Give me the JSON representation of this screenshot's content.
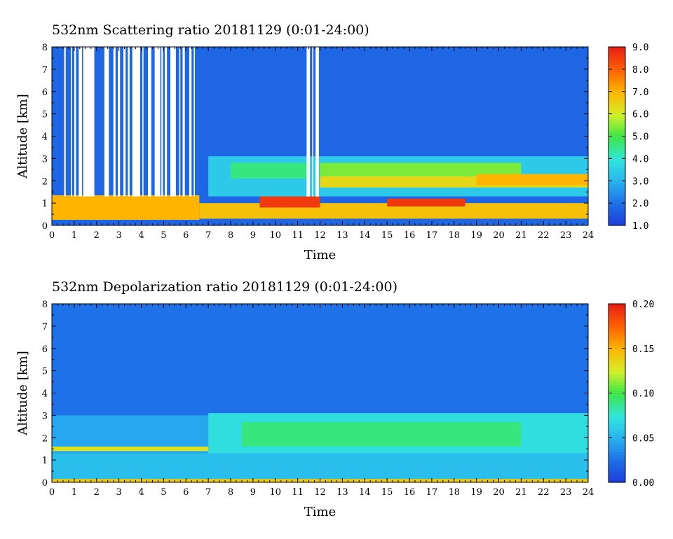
{
  "chart_data": [
    {
      "type": "heatmap",
      "title": "532nm Scattering ratio  20181129 (0:01-24:00)",
      "xlabel": "Time",
      "ylabel": "Altitude [km]",
      "xlim": [
        0,
        24
      ],
      "ylim": [
        0,
        8
      ],
      "x_ticks": [
        "0",
        "1",
        "2",
        "3",
        "4",
        "5",
        "6",
        "7",
        "8",
        "9",
        "10",
        "11",
        "12",
        "13",
        "14",
        "15",
        "16",
        "17",
        "18",
        "19",
        "20",
        "21",
        "22",
        "23",
        "24"
      ],
      "y_ticks": [
        "0",
        "1",
        "2",
        "3",
        "4",
        "5",
        "6",
        "7",
        "8"
      ],
      "colorbar": {
        "min": 1.0,
        "max": 9.0,
        "ticks": [
          "1.0",
          "2.0",
          "3.0",
          "4.0",
          "5.0",
          "6.0",
          "7.0",
          "8.0",
          "9.0"
        ]
      },
      "background_value": 1.8,
      "layers": [
        {
          "t0": 0,
          "t1": 6.6,
          "z0": 0.25,
          "z1": 1.35,
          "value": 7.0
        },
        {
          "t0": 6.6,
          "t1": 24,
          "z0": 0.3,
          "z1": 1.0,
          "value": 6.8
        },
        {
          "t0": 9.3,
          "t1": 12.0,
          "z0": 0.8,
          "z1": 1.3,
          "value": 8.6
        },
        {
          "t0": 15.0,
          "t1": 18.5,
          "z0": 0.85,
          "z1": 1.2,
          "value": 8.6
        },
        {
          "t0": 7.0,
          "t1": 24,
          "z0": 1.3,
          "z1": 3.1,
          "value": 3.4
        },
        {
          "t0": 8.0,
          "t1": 11.5,
          "z0": 2.1,
          "z1": 2.8,
          "value": 4.6
        },
        {
          "t0": 12.0,
          "t1": 21.0,
          "z0": 2.2,
          "z1": 2.8,
          "value": 5.4
        },
        {
          "t0": 12.0,
          "t1": 24,
          "z0": 1.7,
          "z1": 2.2,
          "value": 6.4
        },
        {
          "t0": 19.0,
          "t1": 24,
          "z0": 1.8,
          "z1": 2.3,
          "value": 7.0
        }
      ],
      "missing_columns": [
        [
          0.55,
          0.62
        ],
        [
          0.85,
          0.9
        ],
        [
          1.0,
          1.08
        ],
        [
          1.2,
          1.35
        ],
        [
          1.4,
          1.9
        ],
        [
          2.35,
          2.55
        ],
        [
          2.75,
          2.85
        ],
        [
          2.95,
          3.05
        ],
        [
          3.2,
          3.3
        ],
        [
          3.4,
          3.48
        ],
        [
          3.6,
          3.95
        ],
        [
          4.05,
          4.1
        ],
        [
          4.3,
          4.45
        ],
        [
          4.6,
          4.85
        ],
        [
          4.9,
          4.97
        ],
        [
          5.05,
          5.15
        ],
        [
          5.3,
          5.55
        ],
        [
          5.7,
          5.75
        ],
        [
          5.85,
          5.95
        ],
        [
          6.15,
          6.25
        ],
        [
          6.35,
          6.4
        ],
        [
          11.4,
          11.55
        ],
        [
          11.65,
          11.7
        ],
        [
          11.8,
          11.95
        ]
      ]
    },
    {
      "type": "heatmap",
      "title": "532nm Depolarization ratio  20181129 (0:01-24:00)",
      "xlabel": "Time",
      "ylabel": "Altitude [km]",
      "xlim": [
        0,
        24
      ],
      "ylim": [
        0,
        8
      ],
      "x_ticks": [
        "0",
        "1",
        "2",
        "3",
        "4",
        "5",
        "6",
        "7",
        "8",
        "9",
        "10",
        "11",
        "12",
        "13",
        "14",
        "15",
        "16",
        "17",
        "18",
        "19",
        "20",
        "21",
        "22",
        "23",
        "24"
      ],
      "y_ticks": [
        "0",
        "1",
        "2",
        "3",
        "4",
        "5",
        "6",
        "7",
        "8"
      ],
      "colorbar": {
        "min": 0.0,
        "max": 0.2,
        "ticks": [
          "0.00",
          "0.05",
          "0.10",
          "0.15",
          "0.20"
        ]
      },
      "background_value": 0.025,
      "layers": [
        {
          "t0": 0,
          "t1": 24,
          "z0": 0.15,
          "z1": 1.3,
          "value": 0.055
        },
        {
          "t0": 0,
          "t1": 24,
          "z0": 0.0,
          "z1": 0.15,
          "value": 0.14
        },
        {
          "t0": 0,
          "t1": 7.0,
          "z0": 1.3,
          "z1": 3.0,
          "value": 0.045
        },
        {
          "t0": 7.0,
          "t1": 24,
          "z0": 1.3,
          "z1": 3.1,
          "value": 0.07
        },
        {
          "t0": 8.5,
          "t1": 21.0,
          "z0": 1.6,
          "z1": 2.7,
          "value": 0.09
        },
        {
          "t0": 0,
          "t1": 7.0,
          "z0": 1.4,
          "z1": 1.6,
          "value": 0.13
        }
      ]
    }
  ]
}
